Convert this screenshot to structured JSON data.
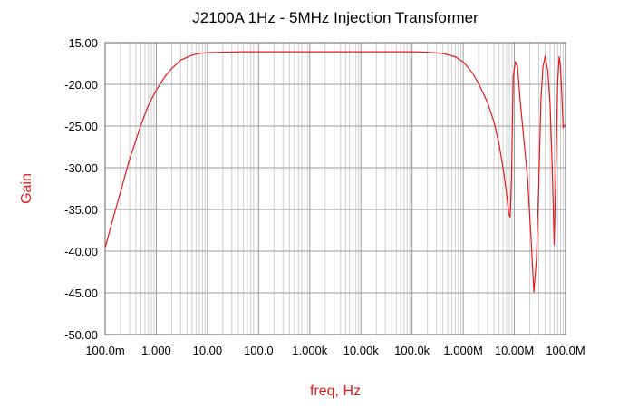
{
  "chart_data": {
    "type": "line",
    "title": "J2100A 1Hz - 5MHz Injection Transformer",
    "xlabel": "freq, Hz",
    "ylabel": "Gain",
    "x_scale": "log",
    "xlim": [
      0.1,
      100000000
    ],
    "ylim": [
      -50,
      -15
    ],
    "grid": true,
    "x_ticks": [
      {
        "value": 0.1,
        "label": "100.0m"
      },
      {
        "value": 1,
        "label": "1.000"
      },
      {
        "value": 10,
        "label": "10.00"
      },
      {
        "value": 100,
        "label": "100.0"
      },
      {
        "value": 1000,
        "label": "1.000k"
      },
      {
        "value": 10000,
        "label": "10.00k"
      },
      {
        "value": 100000,
        "label": "100.0k"
      },
      {
        "value": 1000000,
        "label": "1.000M"
      },
      {
        "value": 10000000,
        "label": "10.00M"
      },
      {
        "value": 100000000,
        "label": "100.0M"
      }
    ],
    "y_ticks": [
      {
        "value": -15,
        "label": "-15.00"
      },
      {
        "value": -20,
        "label": "-20.00"
      },
      {
        "value": -25,
        "label": "-25.00"
      },
      {
        "value": -30,
        "label": "-30.00"
      },
      {
        "value": -35,
        "label": "-35.00"
      },
      {
        "value": -40,
        "label": "-40.00"
      },
      {
        "value": -45,
        "label": "-45.00"
      },
      {
        "value": -50,
        "label": "-50.00"
      }
    ],
    "series": [
      {
        "color": "#e41a1c",
        "x": [
          0.1,
          0.15,
          0.2,
          0.3,
          0.5,
          0.7,
          1,
          1.5,
          2,
          3,
          5,
          7,
          10,
          20,
          50,
          100,
          1000,
          10000,
          100000,
          200000,
          400000,
          700000,
          1000000,
          1500000,
          2000000,
          3000000,
          4000000,
          5000000,
          6000000,
          7000000,
          7800000,
          8300000,
          8800000,
          9500000,
          10500000,
          11500000,
          13000000,
          15000000,
          18000000,
          21000000,
          24000000,
          27000000,
          30000000,
          33000000,
          36000000,
          40000000,
          45000000,
          50000000,
          55000000,
          60000000,
          65000000,
          70000000,
          75000000,
          80000000,
          85000000,
          90000000,
          100000000
        ],
        "y": [
          -39.6,
          -35.6,
          -32.9,
          -29,
          -24.9,
          -22.5,
          -20.7,
          -19,
          -18.1,
          -17.1,
          -16.5,
          -16.3,
          -16.2,
          -16.15,
          -16.1,
          -16.1,
          -16.1,
          -16.1,
          -16.1,
          -16.15,
          -16.3,
          -16.7,
          -17.3,
          -18.6,
          -19.9,
          -22.2,
          -24.5,
          -27.1,
          -30,
          -33,
          -35.6,
          -35.9,
          -31,
          -19,
          -17.3,
          -17.8,
          -22,
          -26,
          -31,
          -38,
          -44.9,
          -41,
          -32,
          -22,
          -18,
          -16.6,
          -18.4,
          -22.5,
          -30,
          -39.2,
          -30,
          -20,
          -16.7,
          -18,
          -21.5,
          -25.2,
          -24.8
        ]
      }
    ]
  }
}
